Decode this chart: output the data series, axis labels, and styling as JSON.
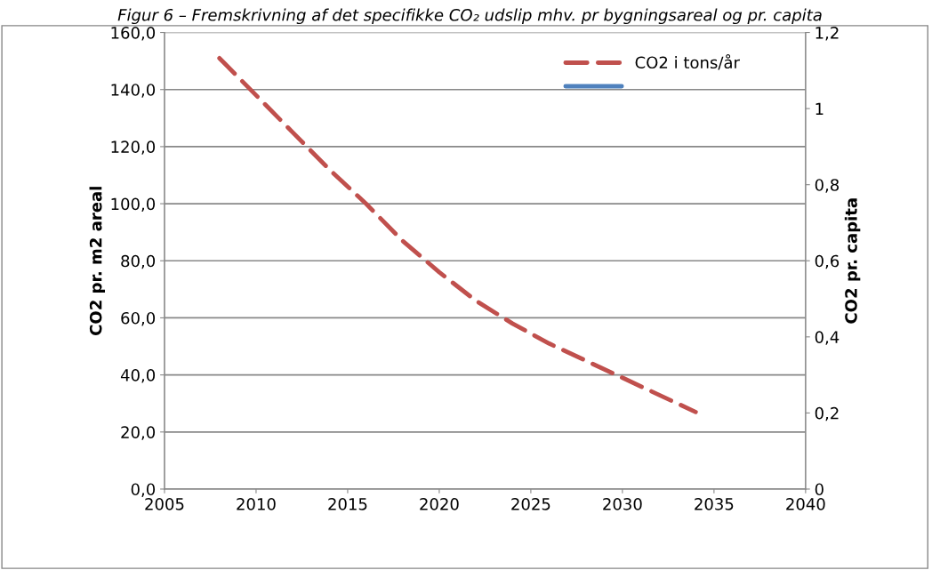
{
  "chart_data": {
    "type": "line",
    "title": "Figur 6 – Fremskrivning af det specifikke CO₂ udslip mhv. pr bygningsareal og pr. capita",
    "ylabel": "CO2 pr. m2 areal",
    "y2label": "CO2 pr. capita",
    "x": [
      2008,
      2010,
      2012,
      2014,
      2016,
      2018,
      2020,
      2022,
      2024,
      2026,
      2028,
      2030,
      2032,
      2034
    ],
    "series": [
      {
        "name": "CO2 i tons/år",
        "color": "#c0504d",
        "line_style": "dashed",
        "values": [
          151,
          138,
          125,
          112,
          100,
          87,
          76,
          66,
          58,
          51,
          45,
          39,
          33,
          27
        ]
      },
      {
        "color": "#4f81bd",
        "line_style": "solid",
        "values": [
          null,
          null,
          null,
          null,
          null,
          null,
          null,
          null,
          null,
          null,
          null,
          null,
          null,
          null
        ]
      }
    ],
    "xlim": [
      2005,
      2040
    ],
    "xticks": [
      2005,
      2010,
      2015,
      2020,
      2025,
      2030,
      2035,
      2040
    ],
    "ylim": [
      0,
      160
    ],
    "yticks": [
      {
        "value": 0,
        "label": "0,0"
      },
      {
        "value": 20,
        "label": "20,0"
      },
      {
        "value": 40,
        "label": "40,0"
      },
      {
        "value": 60,
        "label": "60,0"
      },
      {
        "value": 80,
        "label": "80,0"
      },
      {
        "value": 100,
        "label": "100,0"
      },
      {
        "value": 120,
        "label": "120,0"
      },
      {
        "value": 140,
        "label": "140,0"
      },
      {
        "value": 160,
        "label": "160,0"
      }
    ],
    "y2lim": [
      0,
      1.2
    ],
    "y2ticks": [
      0,
      {
        "value": 0.2,
        "label": "0,2"
      },
      {
        "value": 0.4,
        "label": "0,4"
      },
      {
        "value": 0.6,
        "label": "0,6"
      },
      {
        "value": 0.8,
        "label": "0,8"
      },
      1,
      {
        "value": 1.2,
        "label": "1,2"
      }
    ],
    "grid": "y",
    "legend": "top right",
    "marker": "none"
  }
}
